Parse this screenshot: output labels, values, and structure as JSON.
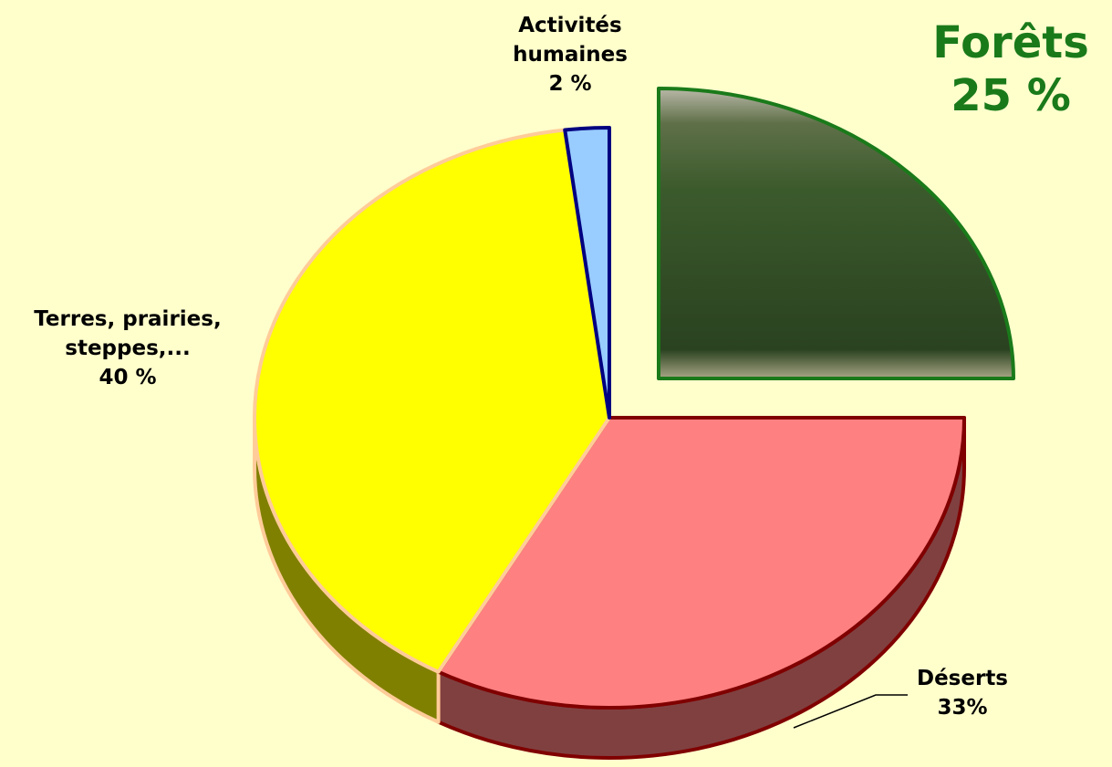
{
  "chart_data": {
    "type": "pie",
    "categories": [
      "Forêts",
      "Déserts",
      "Terres, prairies, steppes,...",
      "Activités humaines"
    ],
    "values": [
      25,
      33,
      40,
      2
    ],
    "value_labels": [
      "25 %",
      "33%",
      "40 %",
      "2 %"
    ],
    "colors": [
      "#3b5a2c",
      "#ff8080",
      "#ffff00",
      "#99ccff"
    ]
  }
}
